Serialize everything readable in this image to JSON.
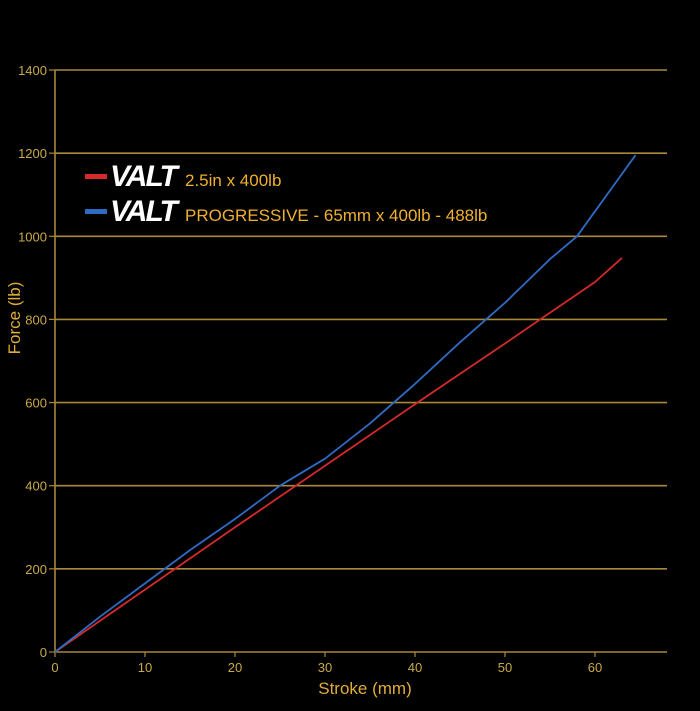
{
  "chart_data": {
    "type": "line",
    "title": "",
    "xlabel": "Stroke (mm)",
    "ylabel": "Force (lb)",
    "xlim": [
      0,
      68
    ],
    "ylim": [
      0,
      1400
    ],
    "x_ticks": [
      0,
      10,
      20,
      30,
      40,
      50,
      60
    ],
    "y_ticks": [
      0,
      200,
      400,
      600,
      800,
      1000,
      1200,
      1400
    ],
    "grid": "horizontal",
    "legend_position": "top-left",
    "series": [
      {
        "name": "2.5in x 400lb",
        "brand": "VALT",
        "color": "#d42a2a",
        "x": [
          0,
          10,
          20,
          30,
          40,
          50,
          60,
          63
        ],
        "y": [
          0,
          150,
          300,
          448,
          596,
          742,
          890,
          948
        ]
      },
      {
        "name": "PROGRESSIVE - 65mm x 400lb - 488lb",
        "brand": "VALT",
        "color": "#2f6bc4",
        "x": [
          0,
          5,
          10,
          15,
          20,
          25,
          30,
          35,
          40,
          45,
          50,
          55,
          58,
          60,
          62,
          64.5
        ],
        "y": [
          0,
          85,
          165,
          245,
          320,
          400,
          465,
          550,
          645,
          745,
          840,
          945,
          1000,
          1060,
          1120,
          1195
        ]
      }
    ]
  }
}
